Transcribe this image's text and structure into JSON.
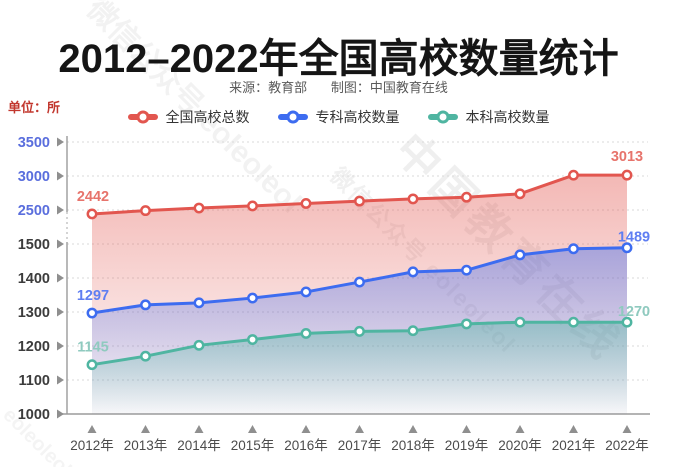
{
  "title": "2012–2022年全国高校数量统计",
  "source": {
    "from": "来源：教育部",
    "maker": "制图：中国教育在线"
  },
  "unit_label": "单位：所",
  "watermarks": [
    "中国教育在线",
    "微信公众号 eoleoleol",
    "eoleoleol"
  ],
  "legend": [
    {
      "name": "全国高校总数",
      "color": "#e2564f"
    },
    {
      "name": "专科高校数量",
      "color": "#3d6cf0"
    },
    {
      "name": "本科高校数量",
      "color": "#4fb5a1"
    }
  ],
  "chart_data": {
    "type": "line",
    "title": "2012–2022年全国高校数量统计",
    "unit": "所",
    "x_labels": [
      "2012年",
      "2013年",
      "2014年",
      "2015年",
      "2016年",
      "2017年",
      "2018年",
      "2019年",
      "2020年",
      "2021年",
      "2022年"
    ],
    "series": [
      {
        "name": "全国高校总数",
        "color": "#e2564f",
        "label_color": "#e7746c",
        "values": [
          2442,
          2491,
          2529,
          2560,
          2596,
          2631,
          2663,
          2688,
          2738,
          3012,
          3013
        ],
        "endpoint_labels": [
          "2442",
          "3013"
        ]
      },
      {
        "name": "专科高校数量",
        "color": "#3d6cf0",
        "label_color": "#5f7ef2",
        "values": [
          1297,
          1321,
          1327,
          1341,
          1359,
          1388,
          1418,
          1423,
          1468,
          1486,
          1489
        ],
        "endpoint_labels": [
          "1297",
          "1489"
        ]
      },
      {
        "name": "本科高校数量",
        "color": "#4fb5a1",
        "label_color": "#8fcabf",
        "values": [
          1145,
          1170,
          1202,
          1219,
          1237,
          1243,
          1245,
          1265,
          1270,
          1270,
          1270
        ],
        "endpoint_labels": [
          "1145",
          "1270"
        ]
      }
    ],
    "y_axis": {
      "broken": true,
      "top_ticks": [
        "3500",
        "3000",
        "2500"
      ],
      "bottom_ticks": [
        "1500",
        "1400",
        "1300",
        "1200",
        "1100",
        "1000"
      ],
      "top_tick_color": "#5a6edd",
      "bottom_tick_color": "#3c3c3c",
      "top_range": [
        2400,
        3500
      ],
      "bottom_range": [
        1000,
        1500
      ]
    },
    "grid": "dotted-horizontal",
    "legend_position": "top"
  }
}
